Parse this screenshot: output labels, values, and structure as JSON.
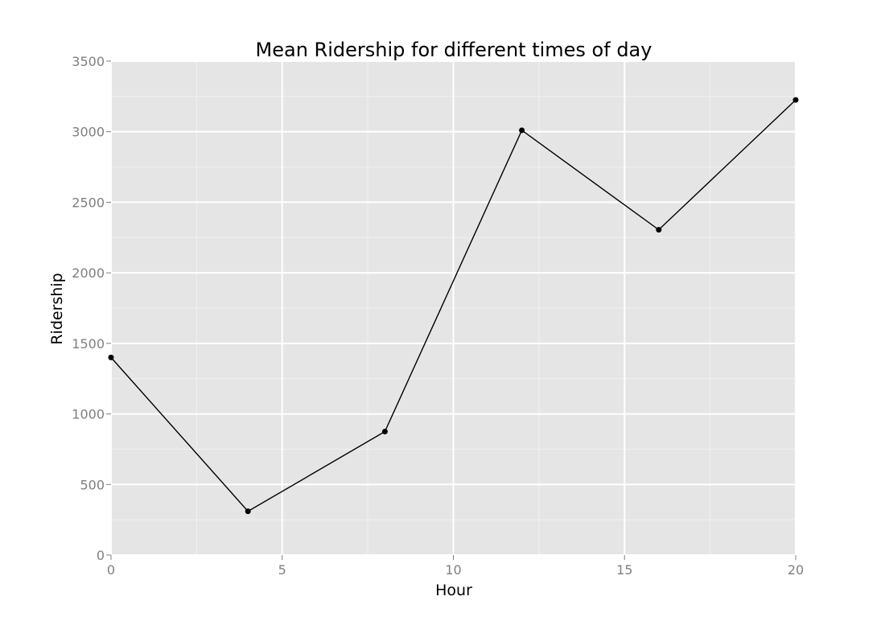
{
  "chart_data": {
    "type": "line",
    "title": "Mean Ridership for different times of day",
    "xlabel": "Hour",
    "ylabel": "Ridership",
    "x": [
      0,
      4,
      8,
      12,
      16,
      20
    ],
    "series": [
      {
        "values": [
          1400,
          310,
          875,
          3010,
          2305,
          3225
        ]
      }
    ],
    "xlim": [
      0,
      20
    ],
    "ylim": [
      0,
      3500
    ],
    "xticks": [
      0,
      5,
      10,
      15,
      20
    ],
    "yticks": [
      0,
      500,
      1000,
      1500,
      2000,
      2500,
      3000,
      3500
    ],
    "grid": true,
    "legend": "none",
    "colors": {
      "panel_background": "#e5e5e5",
      "major_grid": "#ffffff",
      "minor_grid": "#f0f0f0",
      "line": "#000000",
      "point": "#000000",
      "tick_text": "#7f7f7f",
      "tick_mark": "#7f7f7f"
    }
  }
}
